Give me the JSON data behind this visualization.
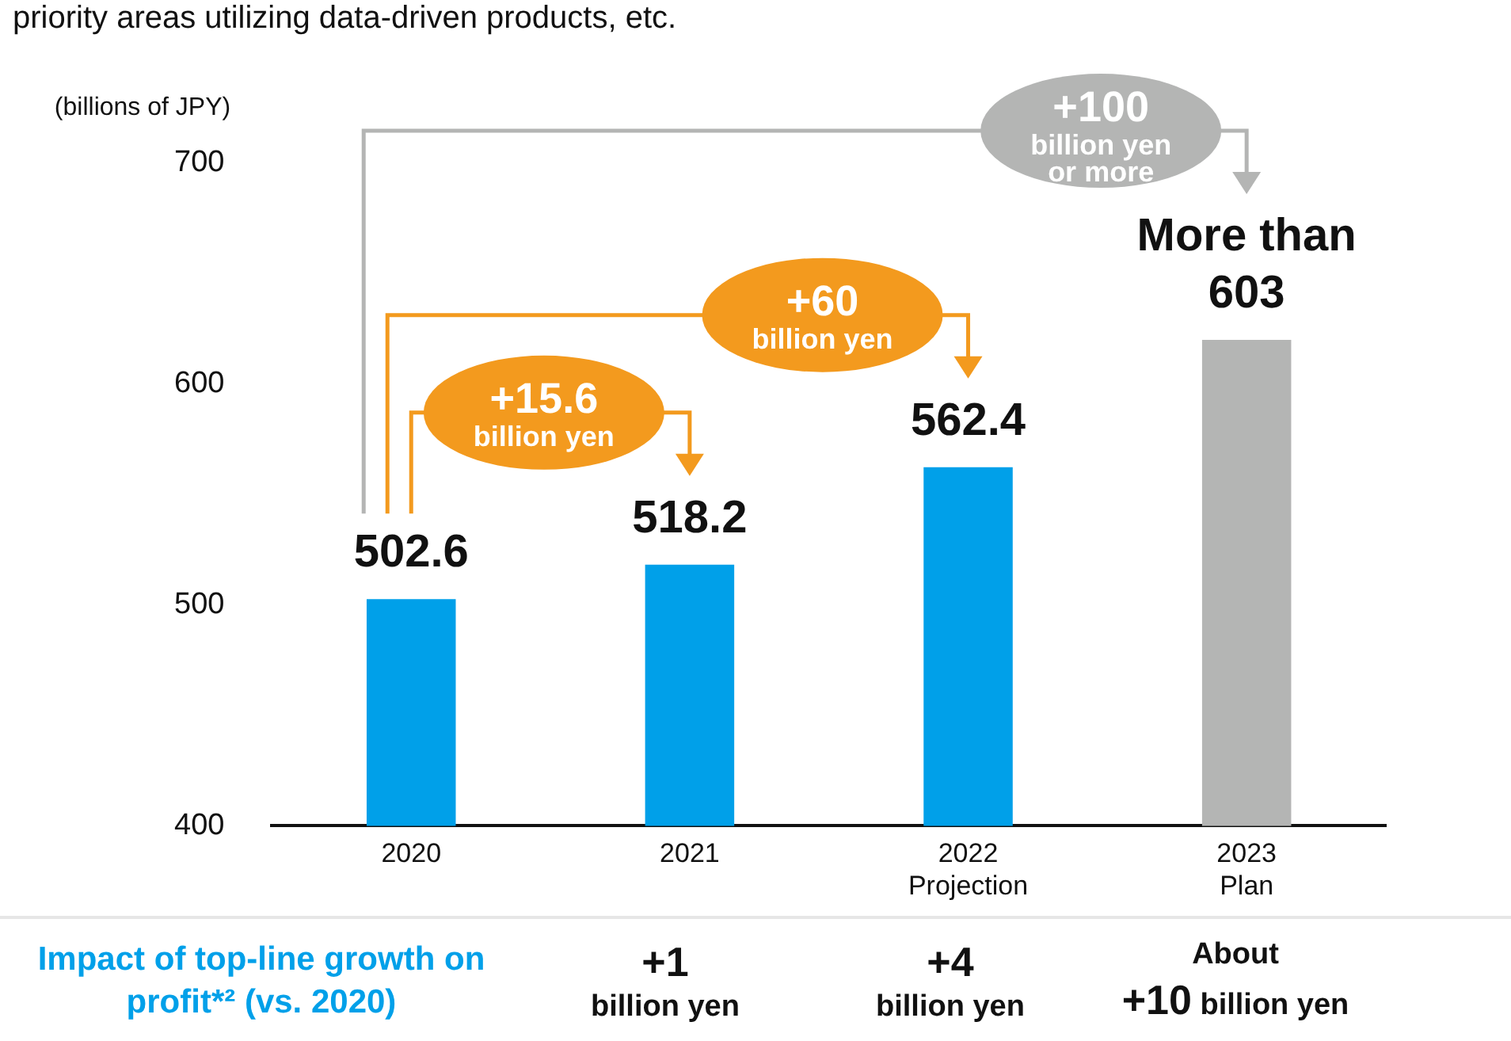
{
  "chart_data": {
    "type": "bar",
    "ylabel": "(billions of JPY)",
    "categories": [
      "2020",
      "2021",
      "2022 Projection",
      "2023 Plan"
    ],
    "values": [
      502.6,
      518.2,
      562.4,
      620
    ],
    "colors": [
      "#00a0e9",
      "#00a0e9",
      "#00a0e9",
      "#b4b5b4"
    ],
    "value_labels": [
      "502.6",
      "518.2",
      "562.4",
      "More than 603"
    ],
    "ylim": [
      400,
      700
    ],
    "yticks": [
      400,
      500,
      600,
      700
    ],
    "grid": false,
    "legend": false,
    "annotations": [
      "priority areas utilizing data-driven products, etc.",
      "+15.6 billion yen",
      "+60 billion yen",
      "+100 billion yen or more",
      "Impact of top-line growth on profit*² (vs. 2020)",
      "+1 billion yen",
      "+4 billion yen",
      "About +10 billion yen"
    ]
  }
}
